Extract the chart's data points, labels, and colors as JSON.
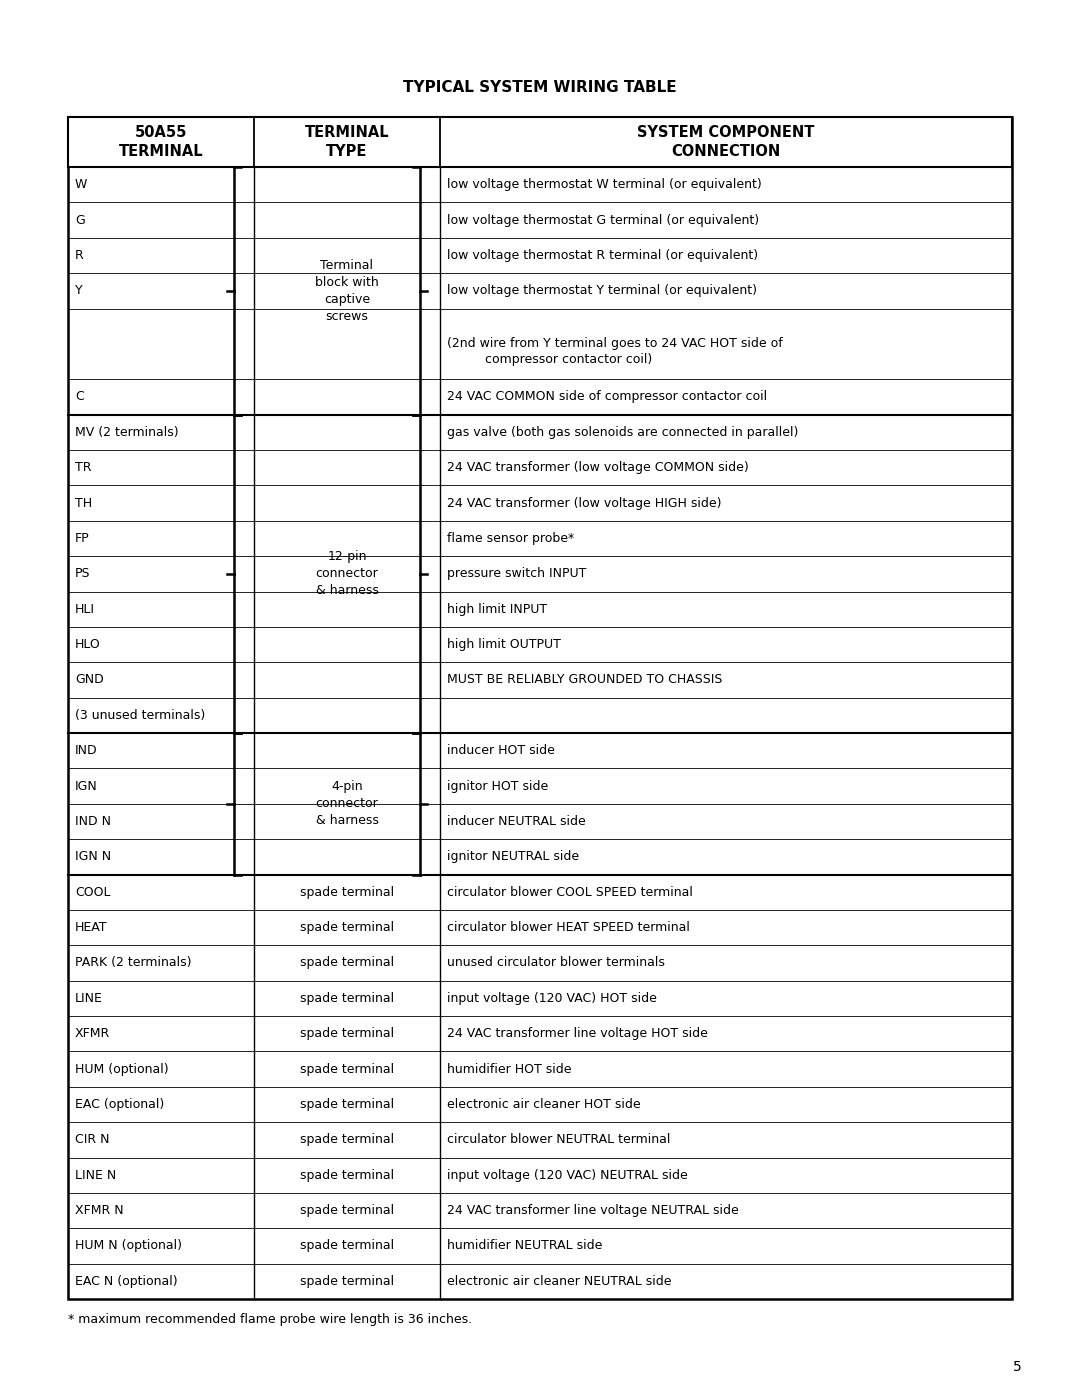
{
  "title": "TYPICAL SYSTEM WIRING TABLE",
  "footnote": "* maximum recommended flame probe wire length is 36 inches.",
  "page_number": "5",
  "rows": [
    {
      "term": "W",
      "type": "",
      "conn": "low voltage thermostat W terminal (or equivalent)",
      "group": 0,
      "conn2": ""
    },
    {
      "term": "G",
      "type": "Terminal",
      "conn": "low voltage thermostat G terminal (or equivalent)",
      "group": 0,
      "conn2": ""
    },
    {
      "term": "R",
      "type": "block with",
      "conn": "low voltage thermostat R terminal (or equivalent)",
      "group": 0,
      "conn2": ""
    },
    {
      "term": "Y",
      "type": "captive",
      "conn": "low voltage thermostat Y terminal (or equivalent)",
      "group": 0,
      "conn2": ""
    },
    {
      "term": "",
      "type": "screws",
      "conn": "(2nd wire from Y terminal goes to 24 VAC HOT side of",
      "group": 0,
      "conn2": "     compressor contactor coil)"
    },
    {
      "term": "C",
      "type": "",
      "conn": "24 VAC COMMON side of compressor contactor coil",
      "group": 0,
      "conn2": ""
    },
    {
      "term": "MV (2 terminals)",
      "type": "",
      "conn": "gas valve (both gas solenoids are connected in parallel)",
      "group": 1,
      "conn2": ""
    },
    {
      "term": "TR",
      "type": "",
      "conn": "24 VAC transformer (low voltage COMMON side)",
      "group": 1,
      "conn2": ""
    },
    {
      "term": "TH",
      "type": "",
      "conn": "24 VAC transformer (low voltage HIGH side)",
      "group": 1,
      "conn2": ""
    },
    {
      "term": "FP",
      "type": "12-pin",
      "conn": "flame sensor probe*",
      "group": 1,
      "conn2": ""
    },
    {
      "term": "PS",
      "type": "connector",
      "conn": "pressure switch INPUT",
      "group": 1,
      "conn2": ""
    },
    {
      "term": "HLI",
      "type": "& harness",
      "conn": "high limit INPUT",
      "group": 1,
      "conn2": ""
    },
    {
      "term": "HLO",
      "type": "",
      "conn": "high limit OUTPUT",
      "group": 1,
      "conn2": ""
    },
    {
      "term": "GND",
      "type": "",
      "conn": "MUST BE RELIABLY GROUNDED TO CHASSIS",
      "group": 1,
      "conn2": ""
    },
    {
      "term": "(3 unused terminals)",
      "type": "",
      "conn": "",
      "group": 1,
      "conn2": ""
    },
    {
      "term": "IND",
      "type": "",
      "conn": "inducer HOT side",
      "group": 2,
      "conn2": ""
    },
    {
      "term": "IGN",
      "type": "4-pin",
      "conn": "ignitor HOT side",
      "group": 2,
      "conn2": ""
    },
    {
      "term": "IND N",
      "type": "connector",
      "conn": "inducer NEUTRAL side",
      "group": 2,
      "conn2": ""
    },
    {
      "term": "IGN N",
      "type": "& harness",
      "conn": "ignitor NEUTRAL side",
      "group": 2,
      "conn2": ""
    },
    {
      "term": "COOL",
      "type": "spade terminal",
      "conn": "circulator blower COOL SPEED terminal",
      "group": 3,
      "conn2": ""
    },
    {
      "term": "HEAT",
      "type": "spade terminal",
      "conn": "circulator blower HEAT SPEED terminal",
      "group": 3,
      "conn2": ""
    },
    {
      "term": "PARK (2 terminals)",
      "type": "spade terminal",
      "conn": "unused circulator blower terminals",
      "group": 3,
      "conn2": ""
    },
    {
      "term": "LINE",
      "type": "spade terminal",
      "conn": "input voltage (120 VAC) HOT side",
      "group": 3,
      "conn2": ""
    },
    {
      "term": "XFMR",
      "type": "spade terminal",
      "conn": "24 VAC transformer line voltage HOT side",
      "group": 3,
      "conn2": ""
    },
    {
      "term": "HUM (optional)",
      "type": "spade terminal",
      "conn": "humidifier HOT side",
      "group": 3,
      "conn2": ""
    },
    {
      "term": "EAC (optional)",
      "type": "spade terminal",
      "conn": "electronic air cleaner HOT side",
      "group": 3,
      "conn2": ""
    },
    {
      "term": "CIR N",
      "type": "spade terminal",
      "conn": "circulator blower NEUTRAL terminal",
      "group": 3,
      "conn2": ""
    },
    {
      "term": "LINE N",
      "type": "spade terminal",
      "conn": "input voltage (120 VAC) NEUTRAL side",
      "group": 3,
      "conn2": ""
    },
    {
      "term": "XFMR N",
      "type": "spade terminal",
      "conn": "24 VAC transformer line voltage NEUTRAL side",
      "group": 3,
      "conn2": ""
    },
    {
      "term": "HUM N (optional)",
      "type": "spade terminal",
      "conn": "humidifier NEUTRAL side",
      "group": 3,
      "conn2": ""
    },
    {
      "term": "EAC N (optional)",
      "type": "spade terminal",
      "conn": "electronic air cleaner NEUTRAL side",
      "group": 3,
      "conn2": ""
    }
  ],
  "groups": [
    {
      "id": 0,
      "brace": true,
      "type_lines": [
        "Terminal",
        "block with",
        "captive",
        "screws"
      ]
    },
    {
      "id": 1,
      "brace": true,
      "type_lines": [
        "12-pin",
        "connector",
        "& harness"
      ]
    },
    {
      "id": 2,
      "brace": true,
      "type_lines": [
        "4-pin",
        "connector",
        "& harness"
      ]
    },
    {
      "id": 3,
      "brace": false,
      "type_lines": []
    }
  ],
  "row_heights": [
    1,
    1,
    1,
    1,
    2,
    1,
    1,
    1,
    1,
    1,
    1,
    1,
    1,
    1,
    1,
    1,
    1,
    1,
    1,
    1,
    1,
    1,
    1,
    1,
    1,
    1,
    1,
    1,
    1,
    1,
    1
  ],
  "group_boundaries": [
    0,
    6,
    15,
    19,
    31
  ]
}
